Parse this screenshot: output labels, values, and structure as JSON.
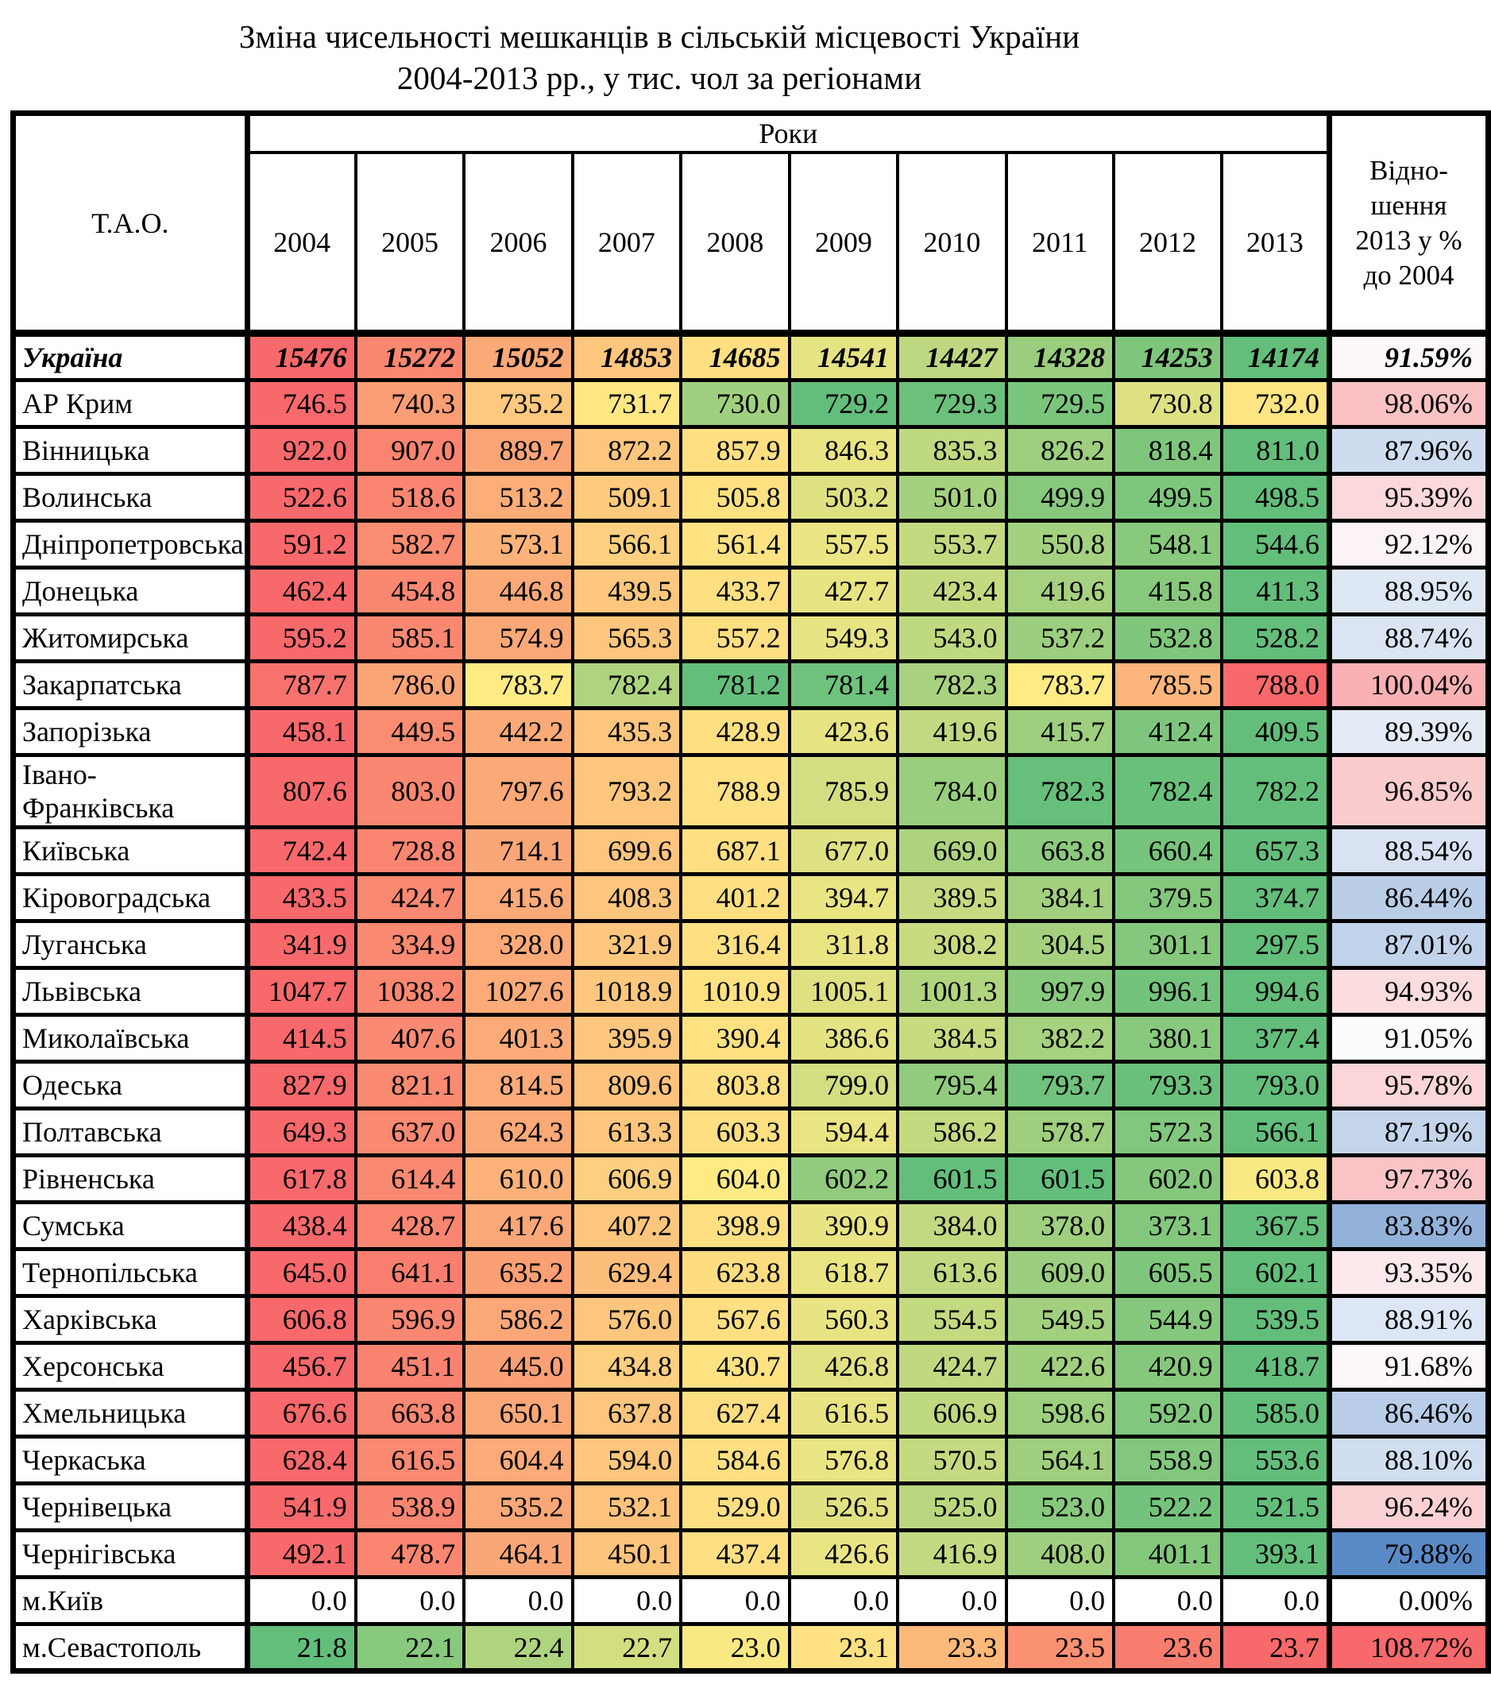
{
  "title": {
    "line1": "Зміна чисельності мешканців в сільській місцевості України",
    "line2": "2004-2013 рр., у тис. чол за регіонами"
  },
  "chart_data": {
    "type": "table",
    "title": "Зміна чисельності мешканців в сільській місцевості України 2004-2013 рр., у тис. чол за регіонами",
    "corner_header": "Т.А.О.",
    "years_group_header": "Роки",
    "years": [
      "2004",
      "2005",
      "2006",
      "2007",
      "2008",
      "2009",
      "2010",
      "2011",
      "2012",
      "2013"
    ],
    "ratio_header": "Відно-\nшення\n2013 у %\nдо 2004",
    "heatmap_colors": {
      "row_scale_min_green": "#63BE7B",
      "row_scale_mid_yellow": "#FFEB84",
      "row_scale_max_red": "#F8696B",
      "pct_scale_min_blue": "#5A8AC6",
      "pct_scale_mid_white": "#FCFCFF",
      "pct_scale_max_red": "#F8696B",
      "no_fill": "#FFFFFF",
      "border": "#000000"
    },
    "rows": [
      {
        "name": "Україна",
        "bold": true,
        "values": [
          "15476",
          "15272",
          "15052",
          "14853",
          "14685",
          "14541",
          "14427",
          "14328",
          "14253",
          "14174"
        ],
        "percent": "91.59%"
      },
      {
        "name": "АР Крим",
        "bold": false,
        "values": [
          "746.5",
          "740.3",
          "735.2",
          "731.7",
          "730.0",
          "729.2",
          "729.3",
          "729.5",
          "730.8",
          "732.0"
        ],
        "percent": "98.06%"
      },
      {
        "name": "Вінницька",
        "bold": false,
        "values": [
          "922.0",
          "907.0",
          "889.7",
          "872.2",
          "857.9",
          "846.3",
          "835.3",
          "826.2",
          "818.4",
          "811.0"
        ],
        "percent": "87.96%"
      },
      {
        "name": "Волинська",
        "bold": false,
        "values": [
          "522.6",
          "518.6",
          "513.2",
          "509.1",
          "505.8",
          "503.2",
          "501.0",
          "499.9",
          "499.5",
          "498.5"
        ],
        "percent": "95.39%"
      },
      {
        "name": "Дніпропетровська",
        "bold": false,
        "values": [
          "591.2",
          "582.7",
          "573.1",
          "566.1",
          "561.4",
          "557.5",
          "553.7",
          "550.8",
          "548.1",
          "544.6"
        ],
        "percent": "92.12%"
      },
      {
        "name": "Донецька",
        "bold": false,
        "values": [
          "462.4",
          "454.8",
          "446.8",
          "439.5",
          "433.7",
          "427.7",
          "423.4",
          "419.6",
          "415.8",
          "411.3"
        ],
        "percent": "88.95%"
      },
      {
        "name": "Житомирська",
        "bold": false,
        "values": [
          "595.2",
          "585.1",
          "574.9",
          "565.3",
          "557.2",
          "549.3",
          "543.0",
          "537.2",
          "532.8",
          "528.2"
        ],
        "percent": "88.74%"
      },
      {
        "name": "Закарпатська",
        "bold": false,
        "values": [
          "787.7",
          "786.0",
          "783.7",
          "782.4",
          "781.2",
          "781.4",
          "782.3",
          "783.7",
          "785.5",
          "788.0"
        ],
        "percent": "100.04%"
      },
      {
        "name": "Запорізька",
        "bold": false,
        "values": [
          "458.1",
          "449.5",
          "442.2",
          "435.3",
          "428.9",
          "423.6",
          "419.6",
          "415.7",
          "412.4",
          "409.5"
        ],
        "percent": "89.39%"
      },
      {
        "name": "Івано-Франківська",
        "bold": false,
        "values": [
          "807.6",
          "803.0",
          "797.6",
          "793.2",
          "788.9",
          "785.9",
          "784.0",
          "782.3",
          "782.4",
          "782.2"
        ],
        "percent": "96.85%"
      },
      {
        "name": "Київська",
        "bold": false,
        "values": [
          "742.4",
          "728.8",
          "714.1",
          "699.6",
          "687.1",
          "677.0",
          "669.0",
          "663.8",
          "660.4",
          "657.3"
        ],
        "percent": "88.54%"
      },
      {
        "name": "Кіровоградська",
        "bold": false,
        "values": [
          "433.5",
          "424.7",
          "415.6",
          "408.3",
          "401.2",
          "394.7",
          "389.5",
          "384.1",
          "379.5",
          "374.7"
        ],
        "percent": "86.44%"
      },
      {
        "name": "Луганська",
        "bold": false,
        "values": [
          "341.9",
          "334.9",
          "328.0",
          "321.9",
          "316.4",
          "311.8",
          "308.2",
          "304.5",
          "301.1",
          "297.5"
        ],
        "percent": "87.01%"
      },
      {
        "name": "Львівська",
        "bold": false,
        "values": [
          "1047.7",
          "1038.2",
          "1027.6",
          "1018.9",
          "1010.9",
          "1005.1",
          "1001.3",
          "997.9",
          "996.1",
          "994.6"
        ],
        "percent": "94.93%"
      },
      {
        "name": "Миколаївська",
        "bold": false,
        "values": [
          "414.5",
          "407.6",
          "401.3",
          "395.9",
          "390.4",
          "386.6",
          "384.5",
          "382.2",
          "380.1",
          "377.4"
        ],
        "percent": "91.05%"
      },
      {
        "name": "Одеська",
        "bold": false,
        "values": [
          "827.9",
          "821.1",
          "814.5",
          "809.6",
          "803.8",
          "799.0",
          "795.4",
          "793.7",
          "793.3",
          "793.0"
        ],
        "percent": "95.78%"
      },
      {
        "name": "Полтавська",
        "bold": false,
        "values": [
          "649.3",
          "637.0",
          "624.3",
          "613.3",
          "603.3",
          "594.4",
          "586.2",
          "578.7",
          "572.3",
          "566.1"
        ],
        "percent": "87.19%"
      },
      {
        "name": "Рівненська",
        "bold": false,
        "values": [
          "617.8",
          "614.4",
          "610.0",
          "606.9",
          "604.0",
          "602.2",
          "601.5",
          "601.5",
          "602.0",
          "603.8"
        ],
        "percent": "97.73%"
      },
      {
        "name": "Сумська",
        "bold": false,
        "values": [
          "438.4",
          "428.7",
          "417.6",
          "407.2",
          "398.9",
          "390.9",
          "384.0",
          "378.0",
          "373.1",
          "367.5"
        ],
        "percent": "83.83%"
      },
      {
        "name": "Тернопільська",
        "bold": false,
        "values": [
          "645.0",
          "641.1",
          "635.2",
          "629.4",
          "623.8",
          "618.7",
          "613.6",
          "609.0",
          "605.5",
          "602.1"
        ],
        "percent": "93.35%"
      },
      {
        "name": "Харківська",
        "bold": false,
        "values": [
          "606.8",
          "596.9",
          "586.2",
          "576.0",
          "567.6",
          "560.3",
          "554.5",
          "549.5",
          "544.9",
          "539.5"
        ],
        "percent": "88.91%"
      },
      {
        "name": "Херсонська",
        "bold": false,
        "values": [
          "456.7",
          "451.1",
          "445.0",
          "434.8",
          "430.7",
          "426.8",
          "424.7",
          "422.6",
          "420.9",
          "418.7"
        ],
        "percent": "91.68%"
      },
      {
        "name": "Хмельницька",
        "bold": false,
        "values": [
          "676.6",
          "663.8",
          "650.1",
          "637.8",
          "627.4",
          "616.5",
          "606.9",
          "598.6",
          "592.0",
          "585.0"
        ],
        "percent": "86.46%"
      },
      {
        "name": "Черкаська",
        "bold": false,
        "values": [
          "628.4",
          "616.5",
          "604.4",
          "594.0",
          "584.6",
          "576.8",
          "570.5",
          "564.1",
          "558.9",
          "553.6"
        ],
        "percent": "88.10%"
      },
      {
        "name": "Чернівецька",
        "bold": false,
        "values": [
          "541.9",
          "538.9",
          "535.2",
          "532.1",
          "529.0",
          "526.5",
          "525.0",
          "523.0",
          "522.2",
          "521.5"
        ],
        "percent": "96.24%"
      },
      {
        "name": "Чернігівська",
        "bold": false,
        "values": [
          "492.1",
          "478.7",
          "464.1",
          "450.1",
          "437.4",
          "426.6",
          "416.9",
          "408.0",
          "401.1",
          "393.1"
        ],
        "percent": "79.88%"
      },
      {
        "name": "м.Київ",
        "bold": false,
        "values": [
          "0.0",
          "0.0",
          "0.0",
          "0.0",
          "0.0",
          "0.0",
          "0.0",
          "0.0",
          "0.0",
          "0.0"
        ],
        "percent": "0.00%"
      },
      {
        "name": "м.Севастополь",
        "bold": false,
        "values": [
          "21.8",
          "22.1",
          "22.4",
          "22.7",
          "23.0",
          "23.1",
          "23.3",
          "23.5",
          "23.6",
          "23.7"
        ],
        "percent": "108.72%"
      }
    ]
  }
}
